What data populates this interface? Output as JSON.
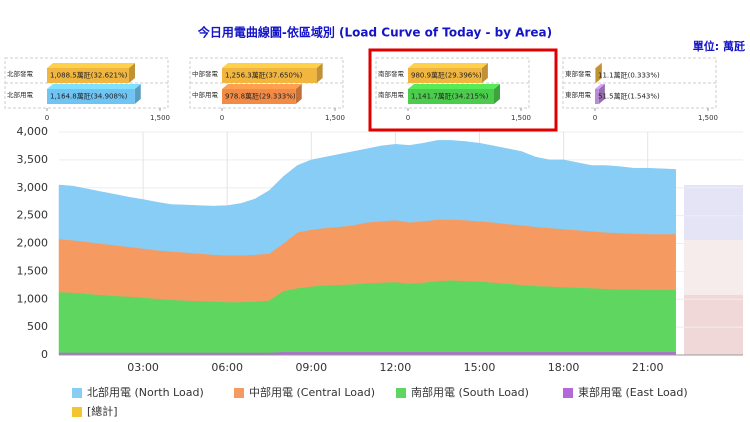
{
  "chart_data": [
    {
      "type": "area",
      "stacked": true,
      "title": "今日用電曲線圖-依區域別 (Load Curve of Today - by Area)",
      "unit_label": "單位: 萬瓩",
      "x": [
        0,
        0.5,
        1,
        1.5,
        2,
        2.5,
        3,
        3.5,
        4,
        4.5,
        5,
        5.5,
        6,
        6.5,
        7,
        7.5,
        8,
        8.5,
        9,
        9.5,
        10,
        10.5,
        11,
        11.5,
        12,
        12.5,
        13,
        13.5,
        14,
        14.5,
        15,
        15.5,
        16,
        16.5,
        17,
        17.5,
        18,
        18.5,
        19,
        19.5,
        20,
        20.5,
        21,
        21.5,
        22
      ],
      "xlim": [
        0,
        24.4
      ],
      "xticks": [
        {
          "value": 3,
          "label": "03:00"
        },
        {
          "value": 6,
          "label": "06:00"
        },
        {
          "value": 9,
          "label": "09:00"
        },
        {
          "value": 12,
          "label": "12:00"
        },
        {
          "value": 15,
          "label": "15:00"
        },
        {
          "value": 18,
          "label": "18:00"
        },
        {
          "value": 21,
          "label": "21:00"
        }
      ],
      "ylim": [
        0,
        4000
      ],
      "yticks": [
        0,
        500,
        {
          "value": 1000,
          "label": "1,000"
        },
        {
          "value": 1500,
          "label": "1,500"
        },
        {
          "value": 2000,
          "label": "2,000"
        },
        {
          "value": 2500,
          "label": "2,500"
        },
        {
          "value": 3000,
          "label": "3,000"
        },
        {
          "value": 3500,
          "label": "3,500"
        },
        {
          "value": 4000,
          "label": "4,000"
        }
      ],
      "grid": true,
      "series": [
        {
          "name": "北部用電 (North Load)",
          "color": "#87cdf5",
          "values": [
            970,
            970,
            950,
            930,
            910,
            890,
            880,
            860,
            840,
            850,
            860,
            870,
            890,
            930,
            1000,
            1130,
            1200,
            1200,
            1250,
            1270,
            1300,
            1320,
            1320,
            1350,
            1360,
            1380,
            1400,
            1420,
            1420,
            1410,
            1400,
            1370,
            1350,
            1320,
            1250,
            1220,
            1240,
            1210,
            1180,
            1200,
            1190,
            1170,
            1180,
            1170,
            1160
          ]
        },
        {
          "name": "中部用電 (Central Load)",
          "color": "#f59b62",
          "values": [
            950,
            940,
            930,
            920,
            910,
            890,
            880,
            870,
            870,
            860,
            850,
            840,
            840,
            840,
            840,
            840,
            850,
            1000,
            1020,
            1030,
            1040,
            1060,
            1090,
            1100,
            1110,
            1100,
            1100,
            1100,
            1090,
            1090,
            1080,
            1080,
            1070,
            1070,
            1060,
            1050,
            1040,
            1030,
            1020,
            1010,
            1010,
            1000,
            1000,
            1000,
            1000
          ]
        },
        {
          "name": "南部用電 (South Load)",
          "color": "#5fd65f",
          "values": [
            1085,
            1075,
            1055,
            1035,
            1015,
            1005,
            985,
            965,
            945,
            935,
            925,
            915,
            905,
            905,
            915,
            935,
            1095,
            1145,
            1175,
            1195,
            1205,
            1215,
            1235,
            1245,
            1255,
            1225,
            1245,
            1275,
            1285,
            1275,
            1265,
            1245,
            1225,
            1205,
            1185,
            1175,
            1165,
            1155,
            1145,
            1135,
            1125,
            1125,
            1115,
            1115,
            1115
          ]
        },
        {
          "name": "東部用電 (East Load)",
          "color": "#b36ad8",
          "values": [
            45,
            45,
            45,
            45,
            45,
            45,
            45,
            45,
            45,
            45,
            45,
            45,
            45,
            45,
            45,
            45,
            55,
            55,
            55,
            55,
            55,
            55,
            55,
            55,
            55,
            55,
            55,
            55,
            55,
            55,
            55,
            55,
            55,
            55,
            55,
            55,
            55,
            55,
            55,
            55,
            55,
            55,
            55,
            55,
            55
          ]
        }
      ],
      "extra_legend": [
        {
          "name": "[總計]",
          "color": "#f5c530"
        }
      ]
    },
    {
      "type": "hbar",
      "categories": [
        "北部發電",
        "北部用電"
      ],
      "values": [
        1088.5,
        1164.8
      ],
      "value_labels": [
        "1,088.5萬瓩(32.621%)",
        "1,164.8萬瓩(34.908%)"
      ],
      "colors": [
        "#f0b640",
        "#6ec4f2"
      ],
      "xlim": [
        0,
        1500
      ],
      "xticks": [
        0,
        {
          "value": 1500,
          "label": "1,500"
        }
      ],
      "highlight": false
    },
    {
      "type": "hbar",
      "categories": [
        "中部發電",
        "中部用電"
      ],
      "values": [
        1256.3,
        978.8
      ],
      "value_labels": [
        "1,256.3萬瓩(37.650%)",
        "978.8萬瓩(29.333%)"
      ],
      "colors": [
        "#f0b640",
        "#f28b46"
      ],
      "xlim": [
        0,
        1500
      ],
      "xticks": [
        0,
        {
          "value": 1500,
          "label": "1,500"
        }
      ],
      "highlight": false
    },
    {
      "type": "hbar",
      "categories": [
        "南部發電",
        "南部用電"
      ],
      "values": [
        980.9,
        1141.7
      ],
      "value_labels": [
        "980.9萬瓩(29.396%)",
        "1,141.7萬瓩(34.215%)"
      ],
      "colors": [
        "#f0b640",
        "#4ccc4c"
      ],
      "xlim": [
        0,
        1500
      ],
      "xticks": [
        0,
        {
          "value": 1500,
          "label": "1,500"
        }
      ],
      "highlight": true
    },
    {
      "type": "hbar",
      "categories": [
        "東部發電",
        "東部用電"
      ],
      "values": [
        11.1,
        51.5
      ],
      "value_labels": [
        "11.1萬瓩(0.333%)",
        "51.5萬瓩(1.543%)"
      ],
      "colors": [
        "#f0b640",
        "#b98ad8"
      ],
      "xlim": [
        0,
        1500
      ],
      "xticks": [
        0,
        {
          "value": 1500,
          "label": "1,500"
        }
      ],
      "highlight": false
    }
  ]
}
